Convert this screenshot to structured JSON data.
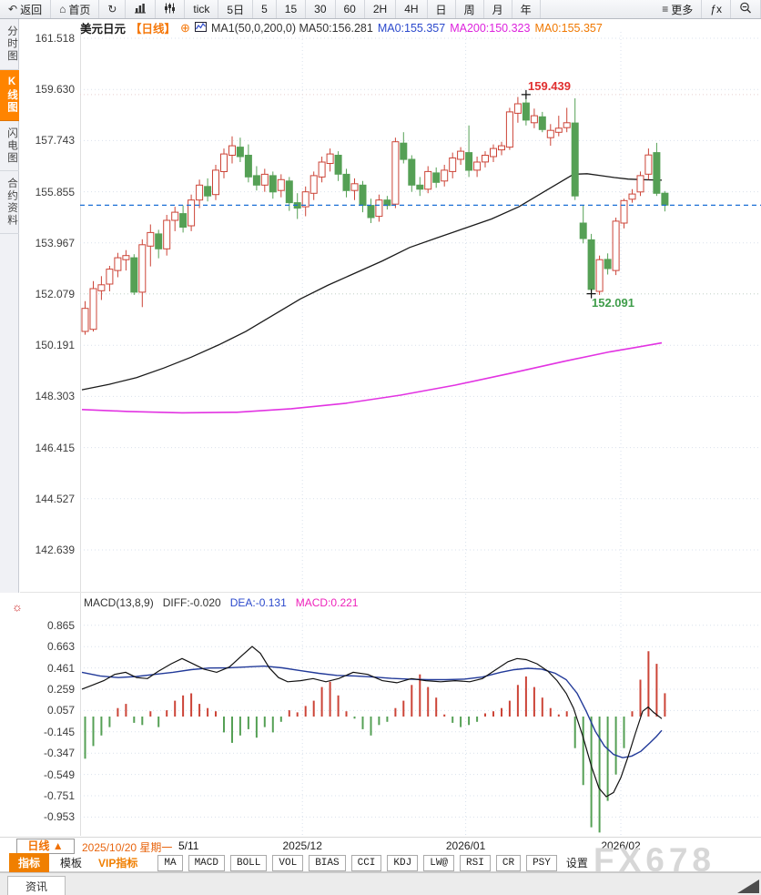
{
  "toolbar": {
    "left_items": [
      {
        "name": "back",
        "icon": "back-icon",
        "glyph": "↶",
        "label": "返回"
      },
      {
        "name": "home",
        "icon": "home-icon",
        "glyph": "⌂",
        "label": "首页"
      },
      {
        "name": "refresh",
        "icon": "refresh-icon",
        "glyph": "↻",
        "label": ""
      },
      {
        "name": "chart-type",
        "icon": "bar-chart-icon",
        "glyph": "",
        "label": ""
      },
      {
        "name": "kline-type",
        "icon": "kline-icon",
        "glyph": "",
        "label": ""
      },
      {
        "name": "tick",
        "label": "tick"
      },
      {
        "name": "5day",
        "label": "5日"
      },
      {
        "name": "5min",
        "label": "5"
      },
      {
        "name": "15min",
        "label": "15"
      },
      {
        "name": "30min",
        "label": "30"
      },
      {
        "name": "60min",
        "label": "60"
      },
      {
        "name": "2h",
        "label": "2H"
      },
      {
        "name": "4h",
        "label": "4H"
      },
      {
        "name": "day",
        "label": "日"
      },
      {
        "name": "week",
        "label": "周"
      },
      {
        "name": "month",
        "label": "月"
      },
      {
        "name": "year",
        "label": "年"
      }
    ],
    "right_items": [
      {
        "name": "more",
        "icon": "more-icon",
        "glyph": "≡",
        "label": "更多"
      },
      {
        "name": "fx",
        "label": "ƒx"
      },
      {
        "name": "zoom-out",
        "icon": "zoom-out-icon",
        "glyph": "",
        "label": ""
      }
    ]
  },
  "sidebar": {
    "items": [
      {
        "label": "分时图",
        "active": false
      },
      {
        "label": "K线图",
        "active": true
      },
      {
        "label": "闪电图",
        "active": false
      },
      {
        "label": "合约资料",
        "active": false
      }
    ]
  },
  "legend": {
    "symbol": "美元日元",
    "period": "【日线】",
    "plus_icon": "⊕",
    "ma_text": "MA1(50,0,200,0) MA50:156.281",
    "ma0_blue": "MA0:155.357",
    "ma200": "MA200:150.323",
    "ma0_orange": "MA0:155.357"
  },
  "macd_legend": {
    "title": "MACD(13,8,9)",
    "diff": "DIFF:-0.020",
    "dea": "DEA:-0.131",
    "macd": "MACD:0.221"
  },
  "annotations": {
    "high": "159.439",
    "low": "152.091"
  },
  "date_bar": {
    "period": "日线 ▲",
    "date": "2025/10/20 星期一",
    "position": "5/11",
    "months": [
      {
        "label": "2025/12",
        "index": 27
      },
      {
        "label": "2026/01",
        "index": 47
      },
      {
        "label": "2026/02",
        "index": 66
      }
    ]
  },
  "bottom_tabs": {
    "main": "指标",
    "plain": "模板",
    "vip": "VIP指标",
    "boxes": [
      "MA",
      "MACD",
      "BOLL",
      "VOL",
      "BIAS",
      "CCI",
      "KDJ",
      "LW@",
      "RSI",
      "CR",
      "PSY"
    ],
    "settings": "设置"
  },
  "news_bar": {
    "label": "资讯"
  },
  "watermark": "FX678",
  "sun_icon": "☼",
  "colors": {
    "accent_orange": "#f07800",
    "up_red": "#cc4437",
    "down_green": "#55a055",
    "ma50_black": "#1a1a1a",
    "ma200_magenta": "#e233e2",
    "price_line_blue": "#1b6fd6",
    "dea_blue": "#223a99",
    "grid": "#d9e1ec"
  },
  "chart_data": {
    "type": "candlestick",
    "title": "美元日元 日线 (USD/JPY daily with MA overlays and MACD)",
    "price_axis_ticks": [
      161.518,
      159.63,
      157.743,
      155.855,
      153.967,
      152.079,
      150.191,
      148.303,
      146.415,
      144.527,
      142.639
    ],
    "current_price": 155.357,
    "high_marker": {
      "index": 54,
      "price": 159.439
    },
    "low_marker": {
      "index": 62,
      "price": 152.091
    },
    "candles_ohlc": [
      [
        150.7,
        151.82,
        150.58,
        151.55
      ],
      [
        150.78,
        152.56,
        150.7,
        152.28
      ],
      [
        152.2,
        152.74,
        151.86,
        152.42
      ],
      [
        152.45,
        153.12,
        152.18,
        153.0
      ],
      [
        152.95,
        153.6,
        152.7,
        153.42
      ],
      [
        153.35,
        153.7,
        152.95,
        153.5
      ],
      [
        153.42,
        153.55,
        152.05,
        152.15
      ],
      [
        152.15,
        154.1,
        151.6,
        153.9
      ],
      [
        153.85,
        154.65,
        153.1,
        154.35
      ],
      [
        154.3,
        154.45,
        153.4,
        153.75
      ],
      [
        153.75,
        155.0,
        153.5,
        154.8
      ],
      [
        154.8,
        155.3,
        154.4,
        155.1
      ],
      [
        155.05,
        155.35,
        154.35,
        154.55
      ],
      [
        154.6,
        155.75,
        154.4,
        155.55
      ],
      [
        155.55,
        156.3,
        155.25,
        156.1
      ],
      [
        156.05,
        156.35,
        155.5,
        155.7
      ],
      [
        155.75,
        156.85,
        155.55,
        156.65
      ],
      [
        156.6,
        157.45,
        156.35,
        157.25
      ],
      [
        157.2,
        157.9,
        156.9,
        157.55
      ],
      [
        157.5,
        157.85,
        156.95,
        157.15
      ],
      [
        157.2,
        157.6,
        156.2,
        156.4
      ],
      [
        156.45,
        156.8,
        155.9,
        156.1
      ],
      [
        156.1,
        156.7,
        155.85,
        156.5
      ],
      [
        156.45,
        156.6,
        155.6,
        155.85
      ],
      [
        155.9,
        156.5,
        155.65,
        156.3
      ],
      [
        156.25,
        156.4,
        155.15,
        155.45
      ],
      [
        155.45,
        155.8,
        154.85,
        155.25
      ],
      [
        155.3,
        156.05,
        154.95,
        155.85
      ],
      [
        155.8,
        156.6,
        155.55,
        156.45
      ],
      [
        156.4,
        157.15,
        156.2,
        156.95
      ],
      [
        156.9,
        157.45,
        156.6,
        157.25
      ],
      [
        157.2,
        157.35,
        156.25,
        156.5
      ],
      [
        156.5,
        156.7,
        155.65,
        155.9
      ],
      [
        155.9,
        156.35,
        155.55,
        156.15
      ],
      [
        156.1,
        156.25,
        155.1,
        155.35
      ],
      [
        155.35,
        155.6,
        154.7,
        154.9
      ],
      [
        154.95,
        155.75,
        154.75,
        155.55
      ],
      [
        155.55,
        155.7,
        155.2,
        155.35
      ],
      [
        155.4,
        157.85,
        155.25,
        157.7
      ],
      [
        157.65,
        158.05,
        156.9,
        157.05
      ],
      [
        157.05,
        157.2,
        155.85,
        156.1
      ],
      [
        156.1,
        156.4,
        155.7,
        155.95
      ],
      [
        155.95,
        156.8,
        155.8,
        156.6
      ],
      [
        156.55,
        156.75,
        156.0,
        156.2
      ],
      [
        156.25,
        156.85,
        156.05,
        156.65
      ],
      [
        156.6,
        157.3,
        156.35,
        157.1
      ],
      [
        157.05,
        157.5,
        156.85,
        157.35
      ],
      [
        157.3,
        158.3,
        156.4,
        156.65
      ],
      [
        156.65,
        157.15,
        156.4,
        156.95
      ],
      [
        156.95,
        157.35,
        156.75,
        157.2
      ],
      [
        157.15,
        157.6,
        156.95,
        157.45
      ],
      [
        157.4,
        157.7,
        157.2,
        157.55
      ],
      [
        157.5,
        158.95,
        157.4,
        158.8
      ],
      [
        158.75,
        159.35,
        158.4,
        159.1
      ],
      [
        159.13,
        159.439,
        158.3,
        158.5
      ],
      [
        158.4,
        158.92,
        158.2,
        158.66
      ],
      [
        158.62,
        158.8,
        158.05,
        158.15
      ],
      [
        157.85,
        158.35,
        157.55,
        158.12
      ],
      [
        158.05,
        158.66,
        157.9,
        158.2
      ],
      [
        158.22,
        158.95,
        158.05,
        158.4
      ],
      [
        158.39,
        159.3,
        155.55,
        155.7
      ],
      [
        154.7,
        155.37,
        153.95,
        154.13
      ],
      [
        154.08,
        154.3,
        152.091,
        152.25
      ],
      [
        152.18,
        153.5,
        152.05,
        153.35
      ],
      [
        153.36,
        153.58,
        152.8,
        153.02
      ],
      [
        152.95,
        154.9,
        152.78,
        154.77
      ],
      [
        154.7,
        155.6,
        154.5,
        155.53
      ],
      [
        155.58,
        155.95,
        155.45,
        155.77
      ],
      [
        155.85,
        156.6,
        155.7,
        156.45
      ],
      [
        156.5,
        157.45,
        156.3,
        157.21
      ],
      [
        157.3,
        157.66,
        155.7,
        155.8
      ],
      [
        155.8,
        155.88,
        155.13,
        155.36
      ]
    ],
    "ma50_points": [
      [
        90,
        148.55
      ],
      [
        120,
        148.75
      ],
      [
        150,
        149.0
      ],
      [
        180,
        149.35
      ],
      [
        210,
        149.75
      ],
      [
        240,
        150.2
      ],
      [
        270,
        150.7
      ],
      [
        300,
        151.3
      ],
      [
        330,
        151.9
      ],
      [
        360,
        152.4
      ],
      [
        390,
        152.85
      ],
      [
        420,
        153.3
      ],
      [
        450,
        153.8
      ],
      [
        480,
        154.15
      ],
      [
        510,
        154.5
      ],
      [
        540,
        154.85
      ],
      [
        570,
        155.3
      ],
      [
        600,
        155.9
      ],
      [
        615,
        156.2
      ],
      [
        630,
        156.5
      ],
      [
        645,
        156.52
      ],
      [
        660,
        156.45
      ],
      [
        675,
        156.38
      ],
      [
        690,
        156.32
      ],
      [
        705,
        156.3
      ],
      [
        727,
        156.28
      ]
    ],
    "ma200_points": [
      [
        90,
        147.82
      ],
      [
        140,
        147.75
      ],
      [
        200,
        147.7
      ],
      [
        260,
        147.72
      ],
      [
        320,
        147.85
      ],
      [
        380,
        148.05
      ],
      [
        440,
        148.35
      ],
      [
        500,
        148.72
      ],
      [
        560,
        149.15
      ],
      [
        620,
        149.6
      ],
      [
        670,
        149.95
      ],
      [
        700,
        150.12
      ],
      [
        727,
        150.28
      ]
    ],
    "macd": {
      "params": [
        13,
        8,
        9
      ],
      "axis_ticks": [
        0.865,
        0.663,
        0.461,
        0.259,
        0.057,
        -0.145,
        -0.347,
        -0.549,
        -0.751,
        -0.953
      ],
      "latest": {
        "diff": -0.02,
        "dea": -0.131,
        "macd": 0.221
      },
      "histogram": [
        -0.4,
        -0.28,
        -0.18,
        -0.1,
        0.08,
        0.12,
        -0.06,
        -0.08,
        0.05,
        -0.1,
        0.06,
        0.15,
        0.2,
        0.22,
        0.12,
        0.08,
        0.05,
        -0.15,
        -0.25,
        -0.18,
        -0.12,
        -0.2,
        -0.1,
        -0.15,
        -0.05,
        0.06,
        0.04,
        0.1,
        0.15,
        0.28,
        0.33,
        0.2,
        0.05,
        -0.02,
        -0.12,
        -0.18,
        -0.08,
        -0.05,
        0.08,
        0.15,
        0.3,
        0.4,
        0.28,
        0.18,
        0.02,
        -0.06,
        -0.1,
        -0.08,
        -0.05,
        0.03,
        0.05,
        0.08,
        0.15,
        0.3,
        0.38,
        0.28,
        0.18,
        0.08,
        0.02,
        0.05,
        -0.3,
        -0.65,
        -1.05,
        -1.1,
        -0.8,
        -0.55,
        -0.3,
        0.05,
        0.35,
        0.62,
        0.5,
        0.221
      ],
      "diff_points": [
        [
          90,
          0.26
        ],
        [
          102,
          0.3
        ],
        [
          114,
          0.34
        ],
        [
          126,
          0.4
        ],
        [
          138,
          0.42
        ],
        [
          150,
          0.37
        ],
        [
          162,
          0.36
        ],
        [
          174,
          0.43
        ],
        [
          188,
          0.5
        ],
        [
          200,
          0.55
        ],
        [
          212,
          0.5
        ],
        [
          224,
          0.45
        ],
        [
          238,
          0.42
        ],
        [
          252,
          0.47
        ],
        [
          266,
          0.58
        ],
        [
          277,
          0.665
        ],
        [
          286,
          0.6
        ],
        [
          296,
          0.46
        ],
        [
          306,
          0.37
        ],
        [
          316,
          0.33
        ],
        [
          330,
          0.34
        ],
        [
          344,
          0.36
        ],
        [
          358,
          0.33
        ],
        [
          372,
          0.36
        ],
        [
          388,
          0.42
        ],
        [
          404,
          0.4
        ],
        [
          420,
          0.34
        ],
        [
          436,
          0.32
        ],
        [
          452,
          0.36
        ],
        [
          468,
          0.34
        ],
        [
          484,
          0.33
        ],
        [
          500,
          0.34
        ],
        [
          516,
          0.33
        ],
        [
          530,
          0.36
        ],
        [
          544,
          0.44
        ],
        [
          558,
          0.52
        ],
        [
          568,
          0.55
        ],
        [
          578,
          0.54
        ],
        [
          590,
          0.5
        ],
        [
          602,
          0.43
        ],
        [
          612,
          0.34
        ],
        [
          622,
          0.22
        ],
        [
          630,
          0.08
        ],
        [
          640,
          -0.18
        ],
        [
          650,
          -0.48
        ],
        [
          658,
          -0.68
        ],
        [
          666,
          -0.76
        ],
        [
          674,
          -0.72
        ],
        [
          682,
          -0.58
        ],
        [
          690,
          -0.38
        ],
        [
          698,
          -0.16
        ],
        [
          706,
          0.05
        ],
        [
          712,
          0.09
        ],
        [
          718,
          0.04
        ],
        [
          727,
          -0.02
        ]
      ],
      "dea_points": [
        [
          90,
          0.42
        ],
        [
          110,
          0.385
        ],
        [
          130,
          0.37
        ],
        [
          150,
          0.38
        ],
        [
          170,
          0.4
        ],
        [
          190,
          0.42
        ],
        [
          210,
          0.445
        ],
        [
          230,
          0.46
        ],
        [
          250,
          0.462
        ],
        [
          270,
          0.47
        ],
        [
          290,
          0.478
        ],
        [
          310,
          0.462
        ],
        [
          330,
          0.435
        ],
        [
          350,
          0.41
        ],
        [
          370,
          0.39
        ],
        [
          390,
          0.385
        ],
        [
          410,
          0.375
        ],
        [
          430,
          0.362
        ],
        [
          450,
          0.355
        ],
        [
          470,
          0.35
        ],
        [
          490,
          0.35
        ],
        [
          510,
          0.355
        ],
        [
          530,
          0.375
        ],
        [
          550,
          0.42
        ],
        [
          565,
          0.445
        ],
        [
          580,
          0.458
        ],
        [
          595,
          0.45
        ],
        [
          610,
          0.41
        ],
        [
          622,
          0.35
        ],
        [
          634,
          0.22
        ],
        [
          644,
          0.05
        ],
        [
          654,
          -0.14
        ],
        [
          664,
          -0.28
        ],
        [
          674,
          -0.36
        ],
        [
          684,
          -0.39
        ],
        [
          694,
          -0.375
        ],
        [
          704,
          -0.33
        ],
        [
          714,
          -0.25
        ],
        [
          721,
          -0.19
        ],
        [
          727,
          -0.131
        ]
      ]
    }
  }
}
